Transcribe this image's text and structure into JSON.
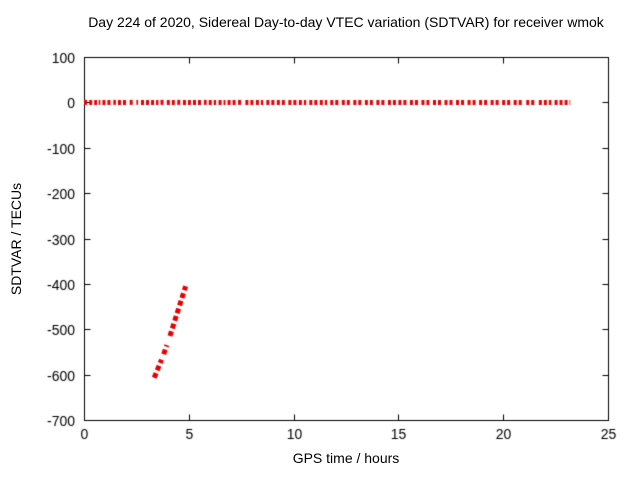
{
  "chart_data": {
    "type": "scatter",
    "title": "Day 224 of 2020, Sidereal Day-to-day VTEC variation (SDTVAR) for receiver wmok",
    "xlabel": "GPS time / hours",
    "ylabel": "SDTVAR / TECUs",
    "xlim": [
      0,
      25
    ],
    "ylim": [
      -700,
      100
    ],
    "xticks": [
      0,
      5,
      10,
      15,
      20,
      25
    ],
    "yticks": [
      100,
      0,
      -100,
      -200,
      -300,
      -400,
      -500,
      -600,
      -700
    ],
    "grid": false,
    "legend": "none",
    "point_color": "#e80000",
    "axis_color": "#000000",
    "background": "#ffffff",
    "series": [
      {
        "name": "sdtvar-near-zero-band",
        "description": "dense dashed band of points at SDTVAR ~ 0 TECUs from 0 to 23.2 h",
        "y": 0,
        "x_segments": [
          [
            0.0,
            0.18
          ],
          [
            0.25,
            0.62
          ],
          [
            0.7,
            0.78
          ],
          [
            0.88,
            1.32
          ],
          [
            1.4,
            1.52
          ],
          [
            1.62,
            2.08
          ],
          [
            2.18,
            2.36
          ],
          [
            2.5,
            2.58
          ],
          [
            2.72,
            3.1
          ],
          [
            3.2,
            3.55
          ],
          [
            3.65,
            3.8
          ],
          [
            3.95,
            4.35
          ],
          [
            4.45,
            4.6
          ],
          [
            4.72,
            5.1
          ],
          [
            5.2,
            5.6
          ],
          [
            5.72,
            5.85
          ],
          [
            5.95,
            6.3
          ],
          [
            6.42,
            6.75
          ],
          [
            6.85,
            7.25
          ],
          [
            7.35,
            7.55
          ],
          [
            7.7,
            8.1
          ],
          [
            8.2,
            8.55
          ],
          [
            8.7,
            9.1
          ],
          [
            9.2,
            9.6
          ],
          [
            9.75,
            10.15
          ],
          [
            10.25,
            10.6
          ],
          [
            10.75,
            11.15
          ],
          [
            11.25,
            11.6
          ],
          [
            11.75,
            12.2
          ],
          [
            12.3,
            12.7
          ],
          [
            12.85,
            13.25
          ],
          [
            13.4,
            13.8
          ],
          [
            13.95,
            14.35
          ],
          [
            14.5,
            14.9
          ],
          [
            15.0,
            15.45
          ],
          [
            15.55,
            15.95
          ],
          [
            16.1,
            16.5
          ],
          [
            16.65,
            17.05
          ],
          [
            17.2,
            17.6
          ],
          [
            17.75,
            18.15
          ],
          [
            18.3,
            18.7
          ],
          [
            18.85,
            19.25
          ],
          [
            19.4,
            19.8
          ],
          [
            19.95,
            20.35
          ],
          [
            20.5,
            20.95
          ],
          [
            21.1,
            21.55
          ],
          [
            21.7,
            22.3
          ],
          [
            22.45,
            23.2
          ]
        ]
      },
      {
        "name": "sdtvar-anomaly-streak",
        "description": "steep rising streak of points between ~3.3 h and ~4.9 h, from ~-607 to ~-405 TECUs, with gaps",
        "segments": [
          {
            "x1": 3.35,
            "y1": -607,
            "x2": 3.7,
            "y2": -567
          },
          {
            "x1": 3.8,
            "y1": -555,
            "x2": 3.95,
            "y2": -535
          },
          {
            "x1": 4.1,
            "y1": -515,
            "x2": 4.85,
            "y2": -405
          }
        ]
      }
    ]
  }
}
